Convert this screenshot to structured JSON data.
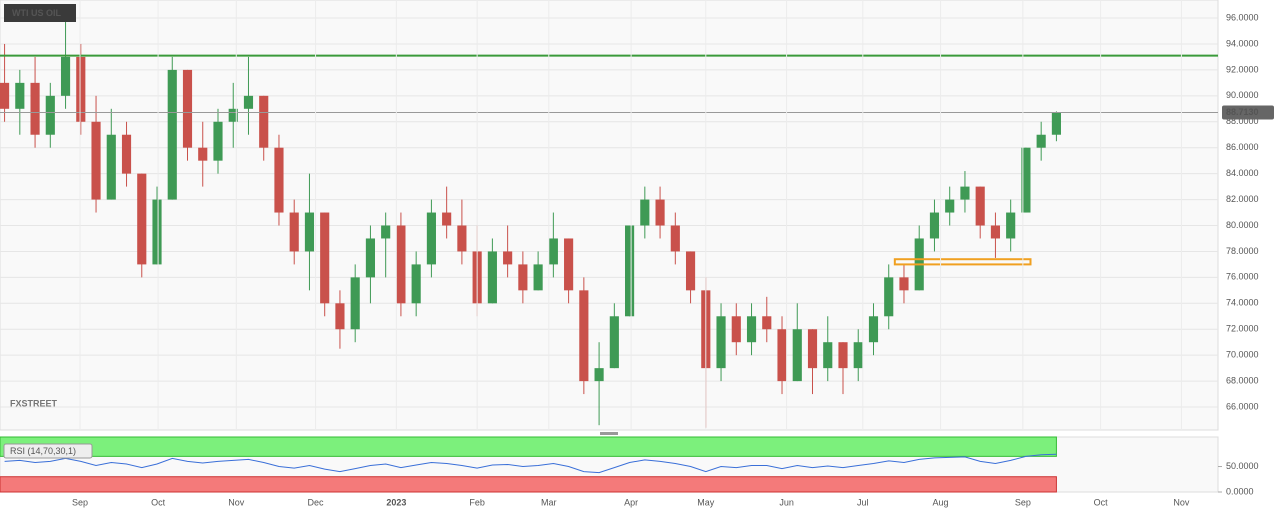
{
  "chart_data": [
    {
      "type": "candlestick",
      "title": "WTI US OIL",
      "watermark": "FXSTREET",
      "up_color": "#3f9a55",
      "down_color": "#c9514b",
      "grid": true,
      "xlim": [
        -0.3,
        79.6
      ],
      "ylim": [
        64.23,
        97.39
      ],
      "yticks": [
        {
          "value": 66,
          "label": "66.0000"
        },
        {
          "value": 68,
          "label": "68.0000"
        },
        {
          "value": 70,
          "label": "70.0000"
        },
        {
          "value": 72,
          "label": "72.0000"
        },
        {
          "value": 74,
          "label": "74.0000"
        },
        {
          "value": 76,
          "label": "76.0000"
        },
        {
          "value": 78,
          "label": "78.0000"
        },
        {
          "value": 80,
          "label": "80.0000"
        },
        {
          "value": 82,
          "label": "82.0000"
        },
        {
          "value": 84,
          "label": "84.0000"
        },
        {
          "value": 86,
          "label": "86.0000"
        },
        {
          "value": 88,
          "label": "88.0000"
        },
        {
          "value": 90,
          "label": "90.0000"
        },
        {
          "value": 92,
          "label": "92.0000"
        },
        {
          "value": 94,
          "label": "94.0000"
        },
        {
          "value": 96,
          "label": "96.0000"
        }
      ],
      "last_price": {
        "value": 88.713,
        "label": "88.7130"
      },
      "level": {
        "value": 93.1,
        "color": "#3a9a3a"
      },
      "zone": {
        "x": [
          58.4,
          67.3
        ],
        "y": [
          77.0,
          77.4
        ],
        "color": "#f0a020"
      },
      "open": [
        91,
        89,
        91,
        87,
        90,
        93,
        88,
        82,
        87,
        84,
        77,
        82,
        92,
        86,
        85,
        88,
        89,
        90,
        86,
        81,
        78,
        81,
        74,
        72,
        76,
        79,
        80,
        74,
        77,
        81,
        80,
        78,
        74,
        78,
        77,
        75,
        77,
        79,
        75,
        68,
        69,
        73,
        80,
        82,
        80,
        78,
        75,
        69,
        73,
        71,
        73,
        72,
        68,
        72,
        69,
        71,
        69,
        71,
        73,
        76,
        75,
        79,
        81,
        82,
        83,
        80,
        79,
        81,
        86,
        87
      ],
      "high": [
        94,
        92,
        93,
        91,
        97,
        94,
        90,
        89,
        88,
        84,
        83,
        93,
        92,
        88,
        89,
        91,
        93,
        90,
        87,
        82,
        84,
        81,
        75,
        77,
        80,
        81,
        81,
        78,
        82,
        83,
        82,
        80,
        79,
        80,
        78,
        78,
        81,
        79,
        76,
        71,
        74,
        80,
        83,
        83,
        81,
        78,
        76,
        74,
        74,
        74,
        74.5,
        73,
        74,
        72,
        73,
        71,
        72,
        74,
        77,
        77,
        80,
        82,
        83,
        84.2,
        83,
        81,
        82,
        86,
        88,
        88.8
      ],
      "low": [
        88,
        87,
        86,
        86,
        89,
        87,
        81,
        82,
        83,
        76,
        77,
        82,
        85,
        83,
        84,
        86,
        87,
        85,
        80,
        77,
        75,
        73,
        70.5,
        71,
        74,
        76,
        73,
        73,
        76,
        79,
        77,
        73,
        74,
        76,
        74,
        75,
        76,
        74,
        67,
        64.6,
        69,
        73,
        79,
        79,
        77,
        74,
        64.4,
        68,
        70,
        70,
        71,
        67,
        68,
        67,
        68,
        67,
        68,
        70,
        72,
        74,
        75,
        78,
        80,
        81,
        79,
        77.5,
        78,
        81,
        85,
        86.5
      ],
      "close": [
        89,
        91,
        87,
        90,
        93,
        88,
        82,
        87,
        84,
        77,
        82,
        92,
        86,
        85,
        88,
        89,
        90,
        86,
        81,
        78,
        81,
        74,
        72,
        76,
        79,
        80,
        74,
        77,
        81,
        80,
        78,
        74,
        78,
        77,
        75,
        77,
        79,
        75,
        68,
        69,
        73,
        80,
        82,
        80,
        78,
        75,
        69,
        73,
        71,
        73,
        72,
        68,
        72,
        69,
        71,
        69,
        71,
        73,
        76,
        75,
        79,
        81,
        82,
        83,
        80,
        79,
        81,
        86,
        87,
        88.7
      ]
    },
    {
      "type": "line",
      "label": "RSI (14,70,30,1)",
      "color": "#3a6fd8",
      "overbought": 70,
      "oversold": 30,
      "overbought_color": "#7cf07c",
      "oversold_color": "#f47a7a",
      "xlim": [
        -0.3,
        79.6
      ],
      "ylim": [
        0,
        108
      ],
      "yticks": [
        {
          "value": 0,
          "label": "0.0000"
        },
        {
          "value": 50,
          "label": "50.0000"
        }
      ],
      "xticks": [
        {
          "value": 4.95,
          "label": "Sep"
        },
        {
          "value": 10.07,
          "label": "Oct"
        },
        {
          "value": 15.2,
          "label": "Nov"
        },
        {
          "value": 20.4,
          "label": "Dec"
        },
        {
          "value": 25.7,
          "label": "2023"
        },
        {
          "value": 31.0,
          "label": "Feb"
        },
        {
          "value": 35.7,
          "label": "Mar"
        },
        {
          "value": 41.1,
          "label": "Apr"
        },
        {
          "value": 46.0,
          "label": "May"
        },
        {
          "value": 51.3,
          "label": "Jun"
        },
        {
          "value": 56.3,
          "label": "Jul"
        },
        {
          "value": 61.4,
          "label": "Aug"
        },
        {
          "value": 66.8,
          "label": "Sep"
        },
        {
          "value": 71.9,
          "label": "Oct"
        },
        {
          "value": 77.2,
          "label": "Nov"
        }
      ],
      "values": [
        60,
        62,
        58,
        60,
        66,
        60,
        52,
        58,
        55,
        48,
        55,
        66,
        60,
        57,
        60,
        62,
        64,
        58,
        50,
        47,
        52,
        45,
        40,
        46,
        52,
        55,
        48,
        53,
        58,
        56,
        52,
        47,
        53,
        54,
        50,
        52,
        56,
        50,
        40,
        38,
        48,
        58,
        63,
        60,
        56,
        50,
        40,
        50,
        48,
        52,
        52,
        46,
        52,
        48,
        51,
        48,
        52,
        56,
        61,
        58,
        64,
        67,
        68,
        69,
        60,
        56,
        62,
        70,
        73,
        74
      ]
    }
  ]
}
